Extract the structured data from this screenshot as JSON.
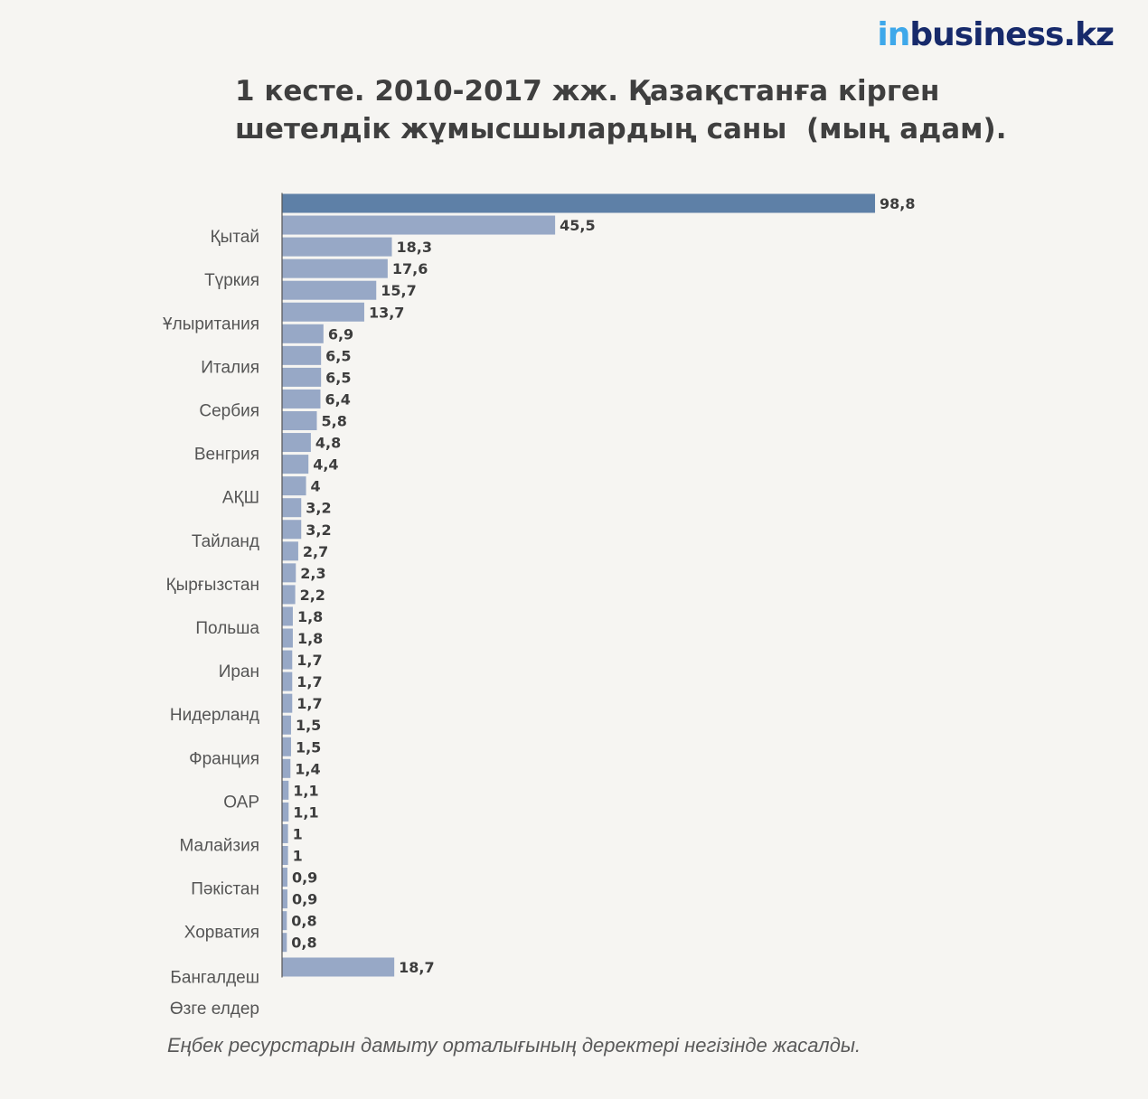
{
  "brand": {
    "logo_prefix": "in",
    "logo_rest": "business.kz"
  },
  "header": {
    "title_line1": "1 кесте. 2010-2017 жж. Қазақстанға кірген",
    "title_line2": "шетелдік жұмысшылардың саны  (мың адам)."
  },
  "footnote": "Еңбек ресурстарын дамыту орталығының деректері негізінде жасалды.",
  "colors": {
    "highlight_bar": "#5e80a7",
    "bar": "#97a8c6",
    "axis": "#555555"
  },
  "chart_data": {
    "type": "bar",
    "orientation": "horizontal",
    "values": [
      "98,8",
      "45,5",
      "18,3",
      "17,6",
      "15,7",
      "13,7",
      "6,9",
      "6,5",
      "6,5",
      "6,4",
      "5,8",
      "4,8",
      "4,4",
      "4",
      "3,2",
      "3,2",
      "2,7",
      "2,3",
      "2,2",
      "1,8",
      "1,8",
      "1,7",
      "1,7",
      "1,7",
      "1,5",
      "1,5",
      "1,4",
      "1,1",
      "1,1",
      "1",
      "1",
      "0,9",
      "0,9",
      "0,8",
      "0,8",
      "18,7"
    ],
    "category_labels": [
      {
        "text": "Қытай",
        "bar": 1.5
      },
      {
        "text": "Түркия",
        "bar": 3.5
      },
      {
        "text": "Ұлыритания",
        "bar": 5.5
      },
      {
        "text": "Италия",
        "bar": 7.5
      },
      {
        "text": "Сербия ",
        "bar": 9.5
      },
      {
        "text": "Венгрия",
        "bar": 11.5
      },
      {
        "text": "АҚШ",
        "bar": 13.5
      },
      {
        "text": "Тайланд",
        "bar": 15.5
      },
      {
        "text": "Қырғызстан",
        "bar": 17.5
      },
      {
        "text": "Польша",
        "bar": 19.5
      },
      {
        "text": "Иран",
        "bar": 21.5
      },
      {
        "text": "Нидерланд",
        "bar": 23.5
      },
      {
        "text": "Франция",
        "bar": 25.5
      },
      {
        "text": "ОАР",
        "bar": 27.5
      },
      {
        "text": "Малайзия",
        "bar": 29.5
      },
      {
        "text": "Пәкістан",
        "bar": 31.5
      },
      {
        "text": "Хорватия",
        "bar": 33.5
      },
      {
        "text": "Бангалдеш",
        "bar": 35.5
      },
      {
        "text": "Өзге елдер",
        "bar": 37.0
      }
    ],
    "highlight_index": 0,
    "xlim": [
      0,
      100
    ],
    "grid": false,
    "legend": "none"
  }
}
